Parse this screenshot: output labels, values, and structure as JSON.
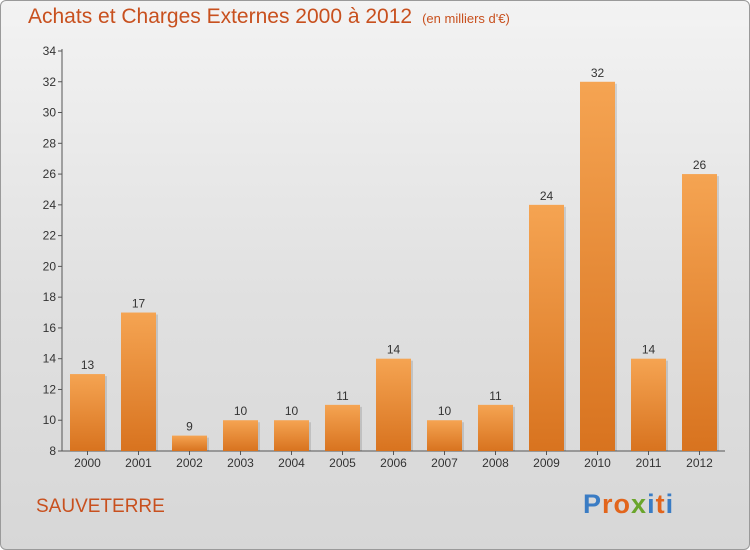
{
  "header": {
    "title": "Achats et Charges Externes 2000 à 2012",
    "subtitle": "(en milliers d'€)"
  },
  "footer": {
    "commune": "SAUVETERRE",
    "logo_letters": [
      "P",
      "r",
      "o",
      "x",
      "i",
      "t",
      "i"
    ]
  },
  "colors": {
    "title": "#c8501e",
    "bar_light": "#f5a452",
    "bar_dark": "#d8731f",
    "logo_letters": [
      "#3a7cc4",
      "#e2651c",
      "#e2651c",
      "#6aa52c",
      "#3a7cc4",
      "#e2651c",
      "#3a7cc4"
    ]
  },
  "chart_data": {
    "type": "bar",
    "title": "Achats et Charges Externes 2000 à 2012",
    "subtitle": "(en milliers d'€)",
    "xlabel": "",
    "ylabel": "",
    "categories": [
      "2000",
      "2001",
      "2002",
      "2003",
      "2004",
      "2005",
      "2006",
      "2007",
      "2008",
      "2009",
      "2010",
      "2011",
      "2012"
    ],
    "values": [
      13,
      17,
      9,
      10,
      10,
      11,
      14,
      10,
      11,
      24,
      32,
      14,
      26
    ],
    "ylim": [
      8,
      34
    ],
    "yticks": [
      8,
      10,
      12,
      14,
      16,
      18,
      20,
      22,
      24,
      26,
      28,
      30,
      32,
      34
    ],
    "grid": false,
    "legend": "none",
    "data_labels": true
  }
}
